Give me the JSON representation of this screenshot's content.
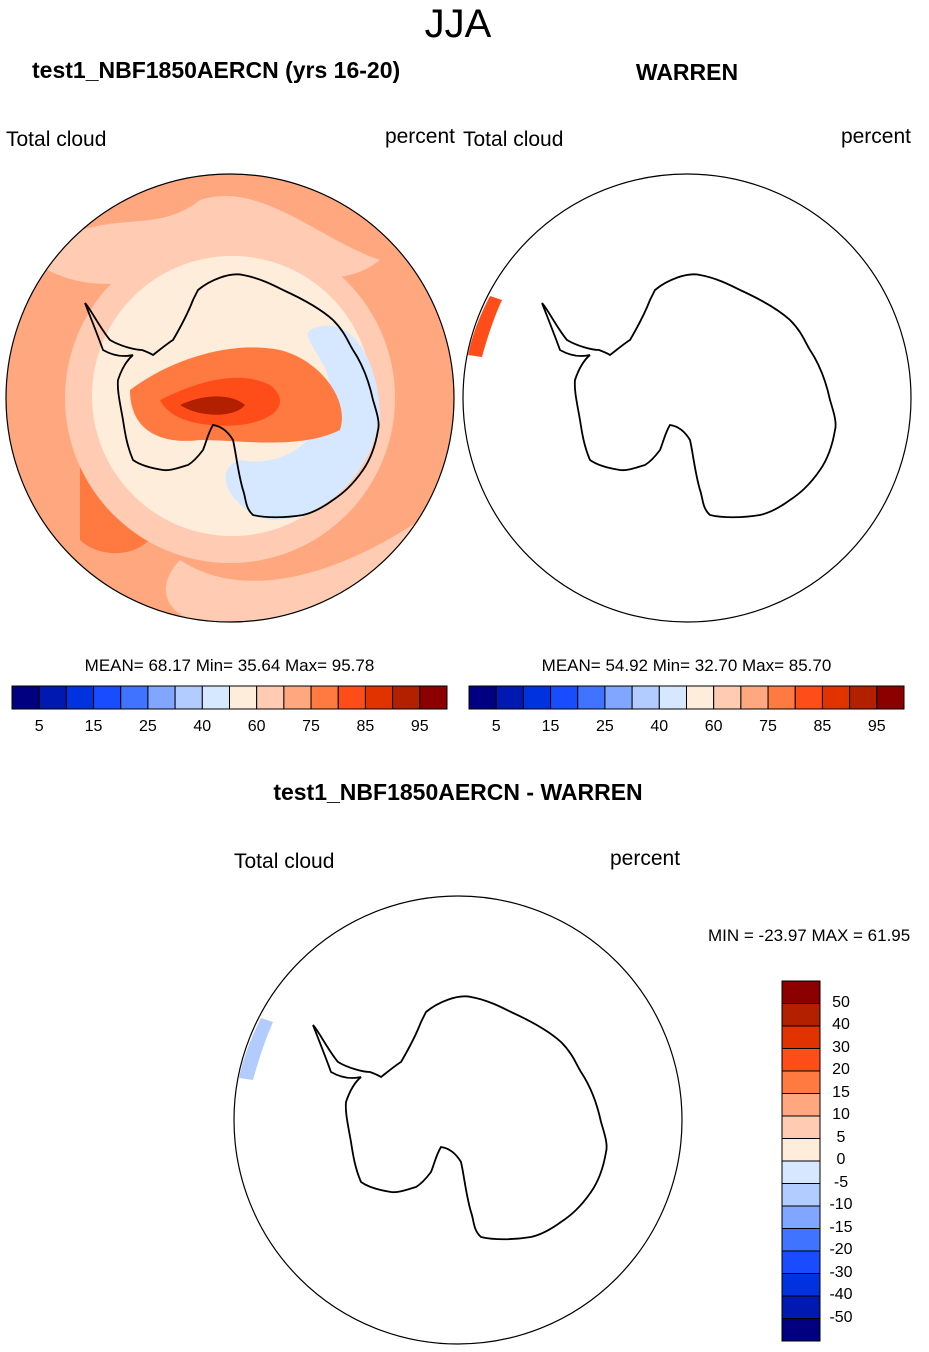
{
  "title": "JJA",
  "panels": [
    {
      "title": "test1_NBF1850AERCN (yrs 16-20)",
      "left_label": "Total cloud",
      "right_label": "percent",
      "stats": "MEAN=  68.17  Min=  35.64  Max=  95.78"
    },
    {
      "title": "WARREN",
      "left_label": "Total cloud",
      "right_label": "percent",
      "stats": "MEAN=  54.92  Min=  32.70  Max=  85.70"
    },
    {
      "title": "test1_NBF1850AERCN - WARREN",
      "left_label": "Total cloud",
      "right_label": "percent",
      "stats": "MIN = -23.97 MAX =  61.95"
    }
  ],
  "colorbar_labels": [
    "5",
    "15",
    "25",
    "40",
    "60",
    "75",
    "85",
    "95"
  ],
  "diff_colorbar_labels": [
    "50",
    "40",
    "30",
    "20",
    "15",
    "10",
    "5",
    "0",
    "-5",
    "-10",
    "-15",
    "-20",
    "-30",
    "-40",
    "-50"
  ],
  "colors": [
    "#000080",
    "#0019b0",
    "#0033e0",
    "#1a4cff",
    "#4073ff",
    "#80a6ff",
    "#b3ccff",
    "#d6e8ff",
    "#ffeddb",
    "#ffccb3",
    "#ffa880",
    "#ff7a40",
    "#ff4d1a",
    "#e03300",
    "#b32000",
    "#8c0000"
  ],
  "chart_data": [
    {
      "type": "heatmap",
      "projection": "south-polar stereographic",
      "title": "test1_NBF1850AERCN (yrs 16-20)",
      "variable": "Total cloud",
      "units": "percent",
      "mean": 68.17,
      "min": 35.64,
      "max": 95.78,
      "levels": [
        5,
        10,
        15,
        20,
        25,
        30,
        40,
        50,
        60,
        70,
        75,
        80,
        85,
        90,
        95
      ]
    },
    {
      "type": "heatmap",
      "projection": "south-polar stereographic",
      "title": "WARREN",
      "variable": "Total cloud",
      "units": "percent",
      "mean": 54.92,
      "min": 32.7,
      "max": 85.7,
      "levels": [
        5,
        10,
        15,
        20,
        25,
        30,
        40,
        50,
        60,
        70,
        75,
        80,
        85,
        90,
        95
      ]
    },
    {
      "type": "heatmap",
      "projection": "south-polar stereographic",
      "title": "test1_NBF1850AERCN - WARREN",
      "variable": "Total cloud",
      "units": "percent",
      "min": -23.97,
      "max": 61.95,
      "levels": [
        -50,
        -40,
        -30,
        -20,
        -15,
        -10,
        -5,
        0,
        5,
        10,
        15,
        20,
        30,
        40,
        50
      ]
    }
  ]
}
